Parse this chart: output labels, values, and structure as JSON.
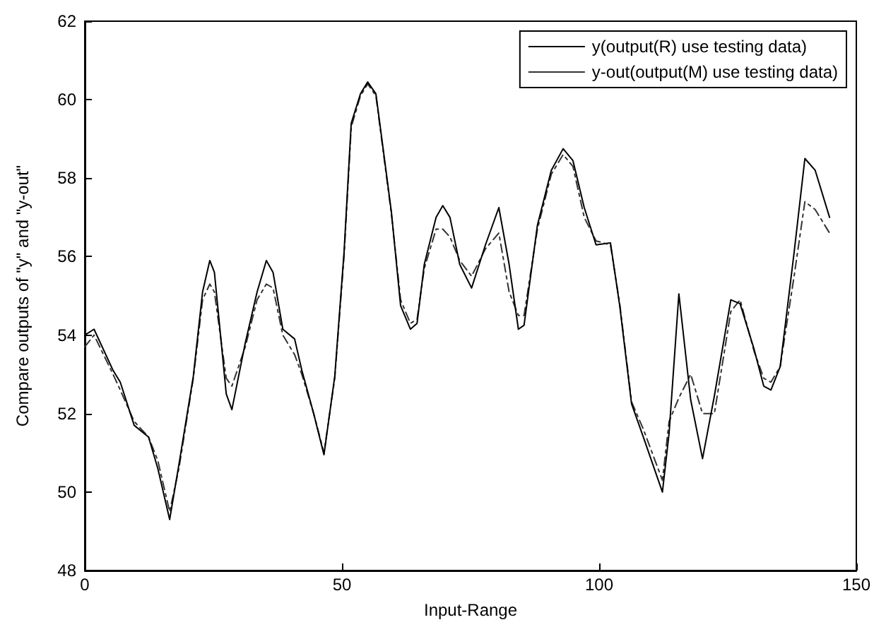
{
  "chart_data": {
    "type": "line",
    "xlabel": "Input-Range",
    "ylabel": "Compare outputs of \"y\" and \"y-out\"",
    "xlim": [
      0,
      150
    ],
    "xticks": [
      0,
      50,
      100,
      150
    ],
    "ylim": [
      48,
      62
    ],
    "yticks": [
      48,
      50,
      52,
      54,
      56,
      58,
      60,
      62
    ],
    "grid": false,
    "legend": "top right",
    "marker": "none",
    "x": [
      0,
      1.8,
      5.5,
      6.9,
      9.6,
      12.4,
      14.2,
      16.5,
      18.3,
      21.1,
      22.9,
      24.3,
      25.2,
      27.5,
      28.6,
      31.2,
      33.5,
      35.3,
      36.6,
      38.5,
      40.8,
      42.2,
      44.5,
      46.5,
      48.6,
      50.4,
      51.8,
      53.6,
      55.0,
      56.6,
      57.7,
      59.6,
      61.4,
      63.3,
      64.6,
      66.0,
      68.3,
      69.6,
      71.0,
      72.9,
      75.2,
      77.9,
      80.5,
      82.5,
      84.3,
      85.4,
      88.0,
      90.7,
      93.0,
      94.9,
      97.1,
      99.4,
      102.2,
      104.0,
      106.3,
      108.6,
      112.3,
      113.6,
      115.5,
      117.8,
      120.1,
      122.4,
      125.6,
      127.4,
      130.1,
      132.0,
      133.4,
      135.2,
      137.9,
      140.0,
      142.0,
      144.8
    ],
    "series": [
      {
        "name": "y(output(R) use testing data)",
        "color": "#000000",
        "line_style": "solid",
        "values": [
          54.0,
          54.15,
          53.1,
          52.8,
          51.7,
          51.4,
          50.6,
          49.3,
          50.7,
          52.95,
          55.1,
          55.9,
          55.6,
          52.5,
          52.1,
          53.8,
          55.1,
          55.9,
          55.6,
          54.15,
          53.9,
          53.1,
          52.0,
          50.95,
          52.95,
          56.1,
          59.4,
          60.15,
          60.45,
          60.15,
          59.05,
          57.15,
          54.75,
          54.15,
          54.3,
          55.8,
          57.0,
          57.3,
          57.0,
          55.8,
          55.2,
          56.3,
          57.25,
          55.8,
          54.15,
          54.25,
          56.8,
          58.2,
          58.75,
          58.45,
          57.25,
          56.3,
          56.35,
          54.75,
          52.25,
          51.4,
          50.0,
          51.5,
          55.05,
          52.35,
          50.85,
          52.45,
          54.9,
          54.8,
          53.65,
          52.7,
          52.6,
          53.2,
          56.1,
          58.5,
          58.2,
          57.0
        ]
      },
      {
        "name": "y-out(output(M) use testing data)",
        "color": "#333333",
        "line_style": "dashed",
        "values": [
          53.7,
          54.0,
          53.0,
          52.6,
          51.8,
          51.4,
          50.8,
          49.5,
          50.6,
          52.9,
          54.9,
          55.3,
          55.1,
          52.9,
          52.7,
          53.7,
          54.9,
          55.3,
          55.2,
          54.0,
          53.5,
          53.0,
          52.0,
          51.0,
          52.9,
          56.0,
          59.3,
          60.1,
          60.4,
          60.1,
          59.0,
          57.1,
          54.9,
          54.3,
          54.4,
          55.7,
          56.7,
          56.7,
          56.5,
          55.9,
          55.5,
          56.2,
          56.6,
          55.1,
          54.5,
          54.5,
          56.7,
          58.1,
          58.6,
          58.3,
          57.0,
          56.4,
          56.3,
          54.8,
          52.3,
          51.6,
          50.3,
          51.8,
          52.4,
          53.0,
          52.0,
          52.0,
          54.6,
          54.9,
          53.6,
          52.9,
          52.8,
          53.2,
          55.5,
          57.4,
          57.2,
          56.6
        ]
      }
    ]
  }
}
